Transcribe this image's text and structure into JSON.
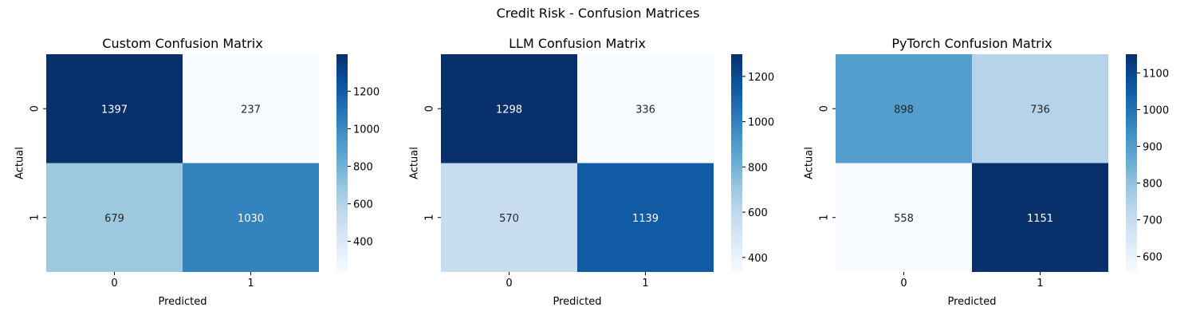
{
  "figure": {
    "suptitle": "Credit Risk - Confusion Matrices"
  },
  "colors": {
    "background": "#ffffff",
    "text": "#000000",
    "colormap_stops": [
      "#f7fbff",
      "#deebf7",
      "#c6dbef",
      "#9ecae1",
      "#6baed6",
      "#4292c6",
      "#2171b5",
      "#08519c",
      "#08306b"
    ]
  },
  "chart_data": [
    {
      "type": "heatmap",
      "title": "Custom Confusion Matrix",
      "xlabel": "Predicted",
      "ylabel": "Actual",
      "x_categories": [
        "0",
        "1"
      ],
      "y_categories": [
        "0",
        "1"
      ],
      "values": [
        [
          1397,
          237
        ],
        [
          679,
          1030
        ]
      ],
      "colorbar": {
        "vmin": 237,
        "vmax": 1397,
        "ticks": [
          400,
          600,
          800,
          1000,
          1200
        ]
      },
      "colormap": "Blues"
    },
    {
      "type": "heatmap",
      "title": "LLM Confusion Matrix",
      "xlabel": "Predicted",
      "ylabel": "Actual",
      "x_categories": [
        "0",
        "1"
      ],
      "y_categories": [
        "0",
        "1"
      ],
      "values": [
        [
          1298,
          336
        ],
        [
          570,
          1139
        ]
      ],
      "colorbar": {
        "vmin": 336,
        "vmax": 1298,
        "ticks": [
          400,
          600,
          800,
          1000,
          1200
        ]
      },
      "colormap": "Blues"
    },
    {
      "type": "heatmap",
      "title": "PyTorch Confusion Matrix",
      "xlabel": "Predicted",
      "ylabel": "Actual",
      "x_categories": [
        "0",
        "1"
      ],
      "y_categories": [
        "0",
        "1"
      ],
      "values": [
        [
          898,
          736
        ],
        [
          558,
          1151
        ]
      ],
      "colorbar": {
        "vmin": 558,
        "vmax": 1151,
        "ticks": [
          600,
          700,
          800,
          900,
          1000,
          1100
        ]
      },
      "colormap": "Blues"
    }
  ]
}
